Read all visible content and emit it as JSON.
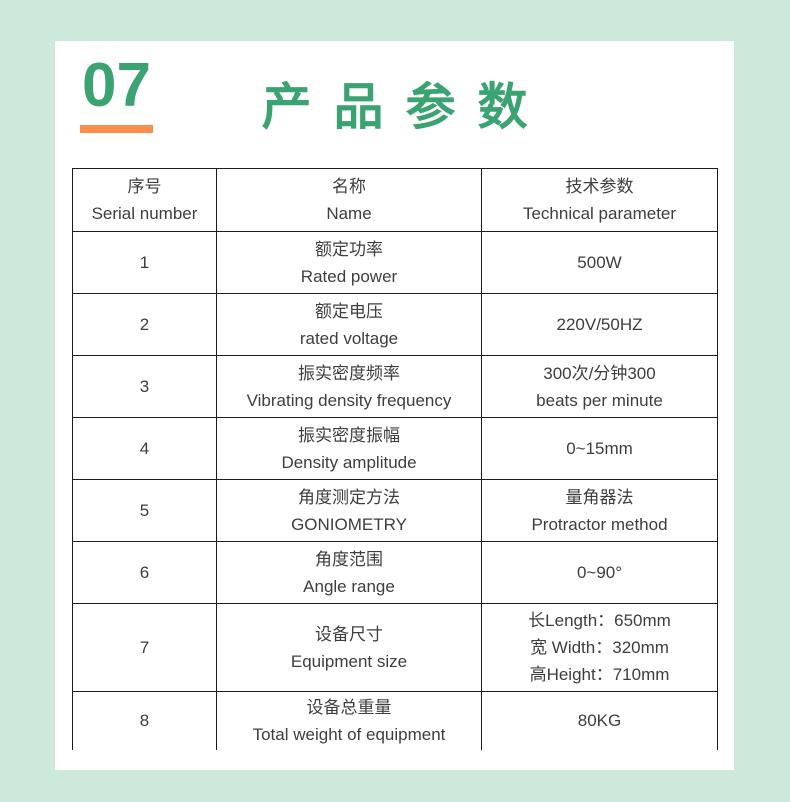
{
  "page": {
    "section_number": "07",
    "title": "产品参数",
    "colors": {
      "accent_green": "#3ba272",
      "accent_orange": "#f98e4d",
      "page_background": "#cde9dc",
      "card_background": "#ffffff",
      "table_border": "#1c1c1c",
      "table_text": "#3e3e3e"
    }
  },
  "table": {
    "header": {
      "col1_zh": "序号",
      "col1_en": "Serial number",
      "col2_zh": "名称",
      "col2_en": "Name",
      "col3_zh": "技术参数",
      "col3_en": "Technical parameter"
    },
    "rows": [
      {
        "no": "1",
        "name_zh": "额定功率",
        "name_en": "Rated power",
        "value_lines": [
          "500W"
        ]
      },
      {
        "no": "2",
        "name_zh": "额定电压",
        "name_en": "rated voltage",
        "value_lines": [
          "220V/50HZ"
        ]
      },
      {
        "no": "3",
        "name_zh": "振实密度频率",
        "name_en": "Vibrating density frequency",
        "value_lines": [
          "300次/分钟300",
          "beats per minute"
        ]
      },
      {
        "no": "4",
        "name_zh": "振实密度振幅",
        "name_en": "Density amplitude",
        "value_lines": [
          "0~15mm"
        ]
      },
      {
        "no": "5",
        "name_zh": "角度测定方法",
        "name_en": "GONIOMETRY",
        "value_lines": [
          "量角器法",
          "Protractor method"
        ]
      },
      {
        "no": "6",
        "name_zh": "角度范围",
        "name_en": "Angle range",
        "value_lines": [
          "0~90°"
        ]
      },
      {
        "no": "7",
        "name_zh": "设备尺寸",
        "name_en": "Equipment size",
        "value_lines": [
          "长Length：650mm",
          "宽 Width：320mm",
          "高Height：710mm"
        ]
      },
      {
        "no": "8",
        "name_zh": "设备总重量",
        "name_en": "Total weight of equipment",
        "value_lines": [
          "80KG"
        ]
      }
    ]
  }
}
